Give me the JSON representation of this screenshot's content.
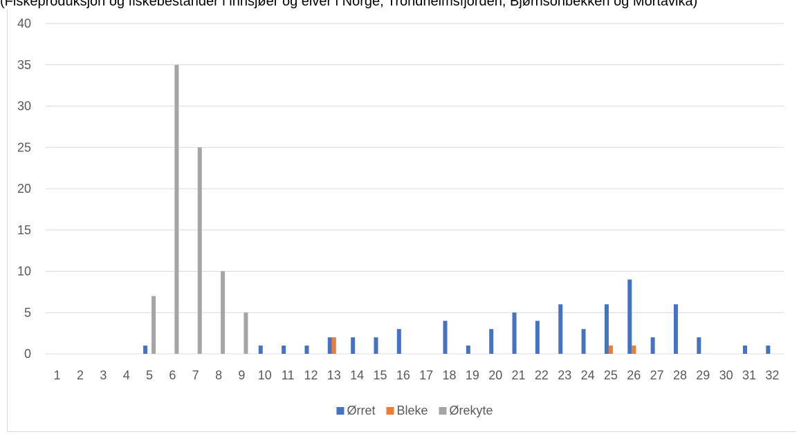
{
  "caption": "(Fiskeproduksjon og fiskebestander i innsjøer og elver i Norge, Trondheimsfjorden, Bjørnsonbekken og Mortavika)",
  "chart_data": {
    "type": "bar",
    "categories": [
      "1",
      "2",
      "3",
      "4",
      "5",
      "6",
      "7",
      "8",
      "9",
      "10",
      "11",
      "12",
      "13",
      "14",
      "15",
      "16",
      "17",
      "18",
      "19",
      "20",
      "21",
      "22",
      "23",
      "24",
      "25",
      "26",
      "27",
      "28",
      "29",
      "30",
      "31",
      "32"
    ],
    "series": [
      {
        "name": "Ørret",
        "color": "#4472c4",
        "values": [
          0,
          0,
          0,
          0,
          1,
          0,
          0,
          0,
          0,
          1,
          1,
          1,
          2,
          2,
          2,
          3,
          0,
          4,
          1,
          3,
          5,
          4,
          6,
          3,
          6,
          9,
          2,
          6,
          2,
          0,
          1,
          1
        ]
      },
      {
        "name": "Bleke",
        "color": "#ed7d31",
        "values": [
          0,
          0,
          0,
          0,
          0,
          0,
          0,
          0,
          0,
          0,
          0,
          0,
          2,
          0,
          0,
          0,
          0,
          0,
          0,
          0,
          0,
          0,
          0,
          0,
          1,
          1,
          0,
          0,
          0,
          0,
          0,
          0
        ]
      },
      {
        "name": "Ørekyte",
        "color": "#a5a5a5",
        "values": [
          0,
          0,
          0,
          0,
          7,
          35,
          25,
          10,
          5,
          0,
          0,
          0,
          0,
          0,
          0,
          0,
          0,
          0,
          0,
          0,
          0,
          0,
          0,
          0,
          0,
          0,
          0,
          0,
          0,
          0,
          0,
          0
        ]
      }
    ],
    "y_ticks": [
      "0",
      "5",
      "10",
      "15",
      "20",
      "25",
      "30",
      "35",
      "40"
    ],
    "ylim": [
      0,
      40
    ],
    "grid": true,
    "legend_position": "bottom"
  }
}
